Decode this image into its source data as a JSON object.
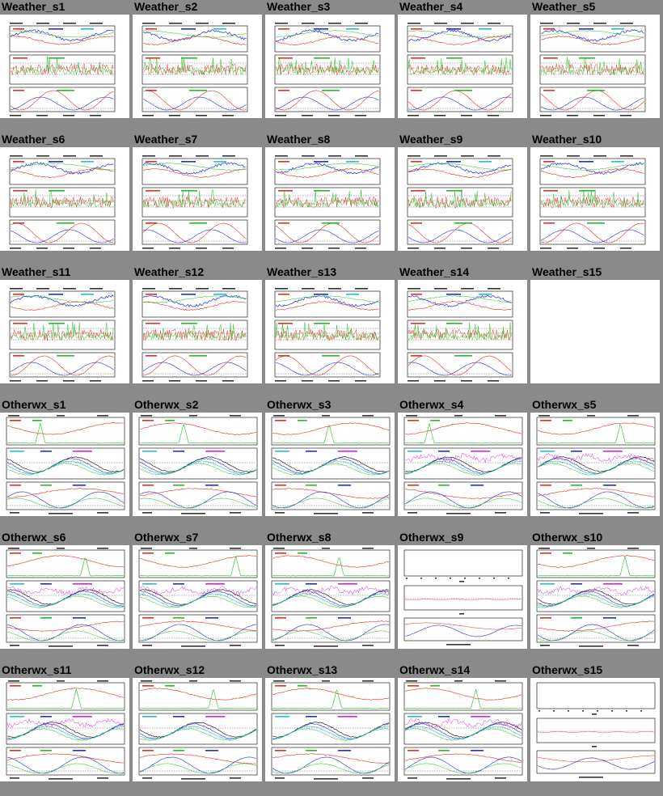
{
  "rows": [
    {
      "kind": "weather",
      "items": [
        {
          "label": "Weather_s1"
        },
        {
          "label": "Weather_s2"
        },
        {
          "label": "Weather_s3"
        },
        {
          "label": "Weather_s4"
        },
        {
          "label": "Weather_s5"
        }
      ]
    },
    {
      "kind": "weather",
      "items": [
        {
          "label": "Weather_s6"
        },
        {
          "label": "Weather_s7"
        },
        {
          "label": "Weather_s8"
        },
        {
          "label": "Weather_s9"
        },
        {
          "label": "Weather_s10"
        }
      ]
    },
    {
      "kind": "weather",
      "items": [
        {
          "label": "Weather_s11"
        },
        {
          "label": "Weather_s12"
        },
        {
          "label": "Weather_s13"
        },
        {
          "label": "Weather_s14"
        },
        {
          "label": "Weather_s15",
          "blank": true
        }
      ]
    },
    {
      "kind": "otherwx",
      "items": [
        {
          "label": "Otherwx_s1"
        },
        {
          "label": "Otherwx_s2"
        },
        {
          "label": "Otherwx_s3"
        },
        {
          "label": "Otherwx_s4"
        },
        {
          "label": "Otherwx_s5"
        }
      ]
    },
    {
      "kind": "otherwx",
      "items": [
        {
          "label": "Otherwx_s6"
        },
        {
          "label": "Otherwx_s7"
        },
        {
          "label": "Otherwx_s8"
        },
        {
          "label": "Otherwx_s9",
          "sparse": true
        },
        {
          "label": "Otherwx_s10"
        }
      ]
    },
    {
      "kind": "otherwx",
      "items": [
        {
          "label": "Otherwx_s11"
        },
        {
          "label": "Otherwx_s12"
        },
        {
          "label": "Otherwx_s13"
        },
        {
          "label": "Otherwx_s14"
        },
        {
          "label": "Otherwx_s15",
          "sparse": true
        }
      ]
    }
  ],
  "colors": {
    "background": "#8a8a8a",
    "tile": "#ffffff",
    "red": "#e03020",
    "green": "#20c020",
    "blue": "#2030d0",
    "cyan": "#20c0d0",
    "magenta": "#e020e0",
    "black": "#000000"
  }
}
